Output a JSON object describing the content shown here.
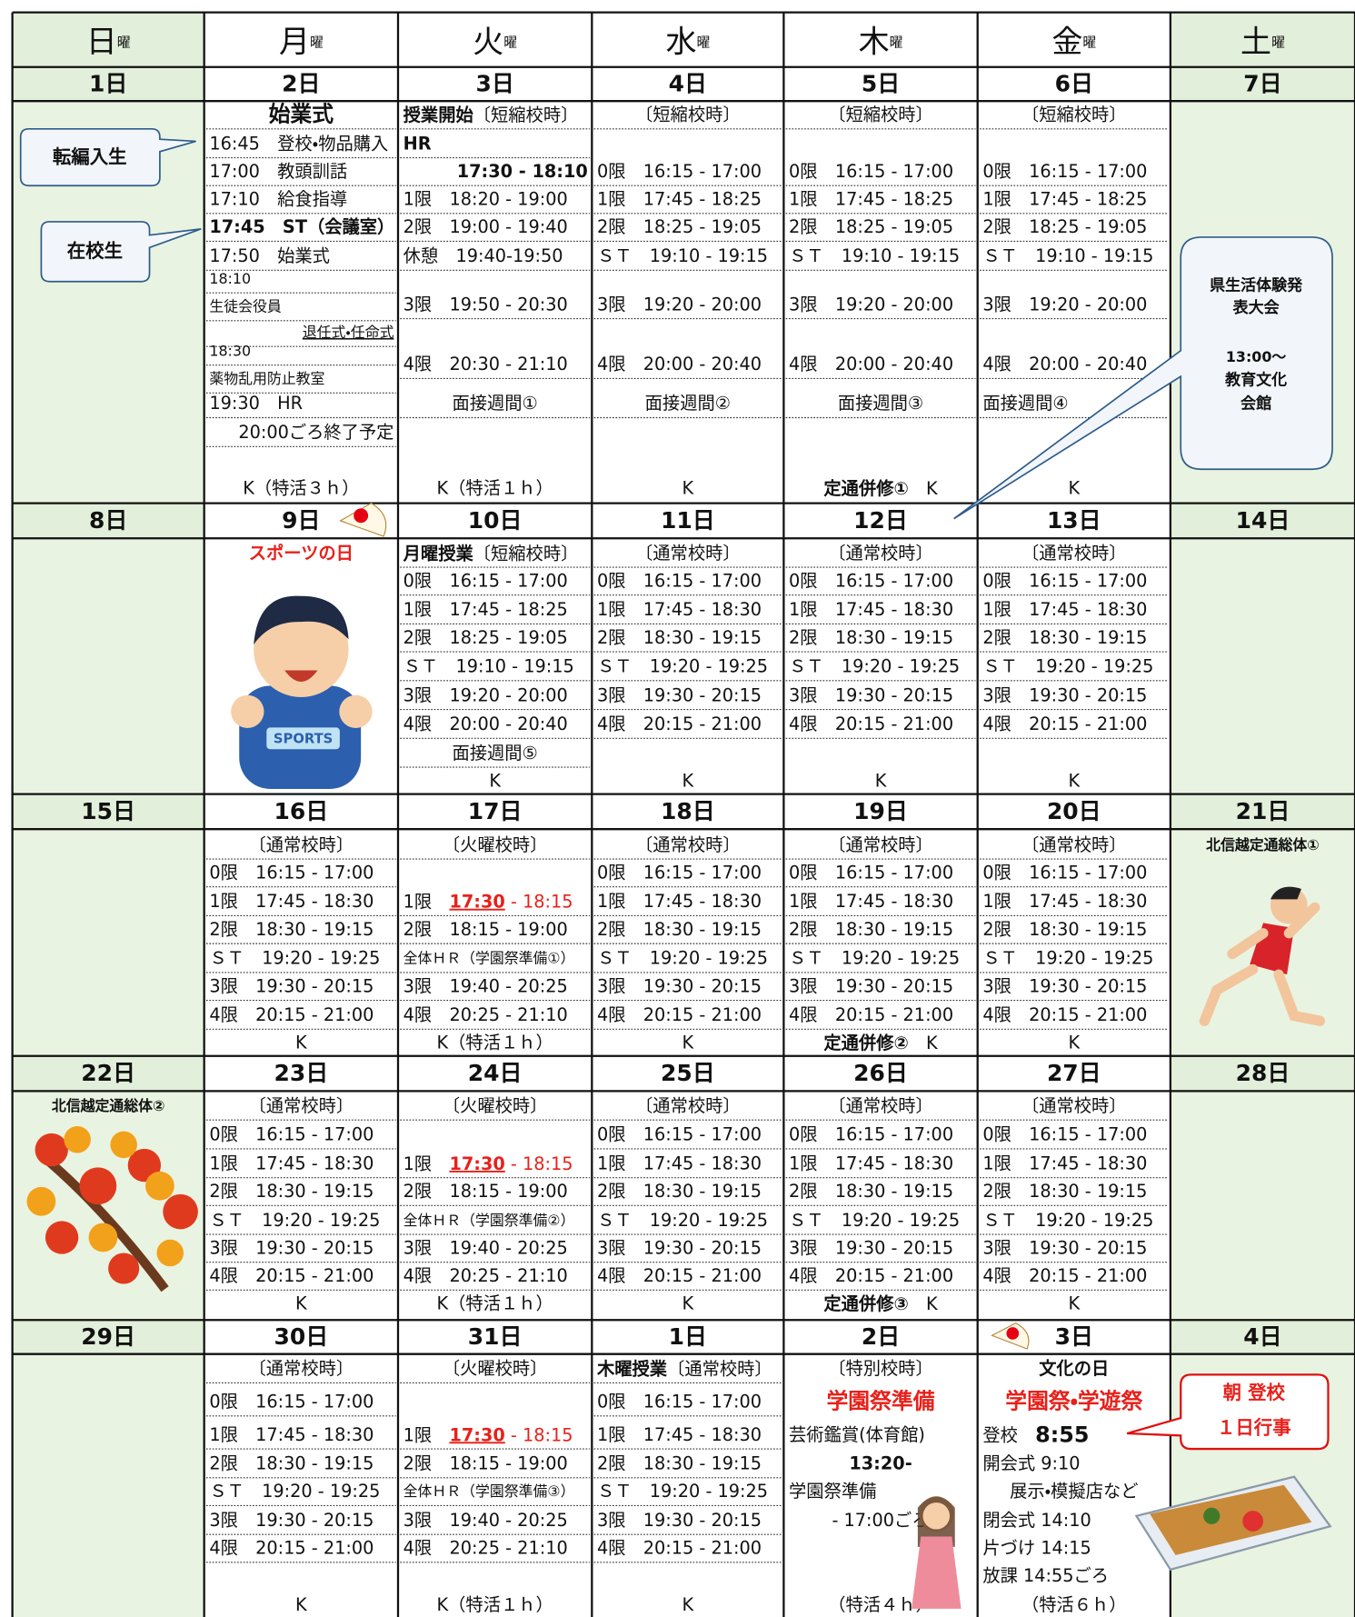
{
  "weekdays": [
    {
      "day": "日",
      "suffix": "曜"
    },
    {
      "day": "月",
      "suffix": "曜"
    },
    {
      "day": "火",
      "suffix": "曜"
    },
    {
      "day": "水",
      "suffix": "曜"
    },
    {
      "day": "木",
      "suffix": "曜"
    },
    {
      "day": "金",
      "suffix": "曜"
    },
    {
      "day": "土",
      "suffix": "曜"
    }
  ],
  "weeks": [
    {
      "dates": [
        "1日",
        "2日",
        "3日",
        "4日",
        "5日",
        "6日",
        "7日"
      ],
      "cells": [
        {
          "lines": []
        },
        {
          "lines": [
            {
              "text": "始業式",
              "style": "big bold center"
            },
            "16:45　登校・物品購入",
            "17:00　教頭訓話",
            "17:10　給食指導",
            {
              "text": "17:45　ST（会議室）",
              "style": "bold"
            },
            "17:50　始業式",
            {
              "text": "18:10",
              "style": "small"
            },
            {
              "text": "生徒会役員",
              "style": "small"
            },
            {
              "text": "退任式・任命式",
              "style": "small right ul"
            },
            {
              "text": "18:30",
              "style": "small"
            },
            {
              "text": "薬物乱用防止教室",
              "style": "small"
            },
            "19:30　HR",
            {
              "text": "20:00ごろ終了予定",
              "style": "right"
            }
          ],
          "foot": "K（特活３ｈ）"
        },
        {
          "lines": [
            {
              "parts": [
                {
                  "text": "授業開始",
                  "style": "bold"
                },
                {
                  "text": "〔短縮校時〕"
                }
              ]
            },
            {
              "text": "HR",
              "style": "bold"
            },
            {
              "text": "17:30 - 18:10",
              "style": "bold right"
            },
            "1限　18:20 - 19:00",
            "2限　19:00 - 19:40",
            "休憩　19:40-19:50",
            "3限　19:50 - 20:30",
            "4限　20:30 - 21:10",
            {
              "text": "面接週間①",
              "style": "center"
            }
          ],
          "foot": "K（特活１ｈ）"
        },
        {
          "lines": [
            {
              "text": "〔短縮校時〕",
              "style": "center"
            },
            null,
            "0限　16:15 - 17:00",
            "1限　17:45 - 18:25",
            "2限　18:25 - 19:05",
            "ＳＴ　19:10 - 19:15",
            "3限　19:20 - 20:00",
            "4限　20:00 - 20:40",
            {
              "text": "面接週間②",
              "style": "center"
            }
          ],
          "foot": "K"
        },
        {
          "lines": [
            {
              "text": "〔短縮校時〕",
              "style": "center"
            },
            null,
            "0限　16:15 - 17:00",
            "1限　17:45 - 18:25",
            "2限　18:25 - 19:05",
            "ＳＴ　19:10 - 19:15",
            "3限　19:20 - 20:00",
            "4限　20:00 - 20:40",
            {
              "text": "面接週間③",
              "style": "center"
            }
          ],
          "foot": {
            "parts": [
              {
                "text": "定通併修①",
                "style": "bold"
              },
              {
                "text": "　K"
              }
            ]
          }
        },
        {
          "lines": [
            {
              "text": "〔短縮校時〕",
              "style": "center"
            },
            null,
            "0限　16:15 - 17:00",
            "1限　17:45 - 18:25",
            "2限　18:25 - 19:05",
            "ＳＴ　19:10 - 19:15",
            "3限　19:20 - 20:00",
            "4限　20:00 - 20:40",
            "面接週間④"
          ],
          "foot": "K"
        },
        {
          "lines": []
        }
      ]
    },
    {
      "dates": [
        "8日",
        "9日",
        "10日",
        "11日",
        "12日",
        "13日",
        "14日"
      ],
      "cells": [
        {
          "lines": []
        },
        {
          "lines": [
            {
              "text": "スポーツの日",
              "style": "red bold center"
            }
          ]
        },
        {
          "lines": [
            {
              "parts": [
                {
                  "text": "月曜授業",
                  "style": "bold"
                },
                {
                  "text": "〔短縮校時〕"
                }
              ]
            },
            "0限　16:15 - 17:00",
            "1限　17:45 - 18:25",
            "2限　18:25 - 19:05",
            "ＳＴ　19:10 - 19:15",
            "3限　19:20 - 20:00",
            "4限　20:00 - 20:40",
            {
              "text": "面接週間⑤",
              "style": "center"
            }
          ],
          "foot": "K"
        },
        {
          "lines": [
            {
              "text": "〔通常校時〕",
              "style": "center"
            },
            "0限　16:15 - 17:00",
            "1限　17:45 - 18:30",
            "2限　18:30 - 19:15",
            "ＳＴ　19:20 - 19:25",
            "3限　19:30 - 20:15",
            "4限　20:15 - 21:00"
          ],
          "foot": "K"
        },
        {
          "lines": [
            {
              "text": "〔通常校時〕",
              "style": "center"
            },
            "0限　16:15 - 17:00",
            "1限　17:45 - 18:30",
            "2限　18:30 - 19:15",
            "ＳＴ　19:20 - 19:25",
            "3限　19:30 - 20:15",
            "4限　20:15 - 21:00"
          ],
          "foot": "K"
        },
        {
          "lines": [
            {
              "text": "〔通常校時〕",
              "style": "center"
            },
            "0限　16:15 - 17:00",
            "1限　17:45 - 18:30",
            "2限　18:30 - 19:15",
            "ＳＴ　19:20 - 19:25",
            "3限　19:30 - 20:15",
            "4限　20:15 - 21:00"
          ],
          "foot": "K"
        },
        {
          "lines": []
        }
      ]
    },
    {
      "dates": [
        "15日",
        "16日",
        "17日",
        "18日",
        "19日",
        "20日",
        "21日"
      ],
      "cells": [
        {
          "lines": []
        },
        {
          "lines": [
            {
              "text": "〔通常校時〕",
              "style": "center"
            },
            "0限　16:15 - 17:00",
            "1限　17:45 - 18:30",
            "2限　18:30 - 19:15",
            "ＳＴ　19:20 - 19:25",
            "3限　19:30 - 20:15",
            "4限　20:15 - 21:00"
          ],
          "foot": "K"
        },
        {
          "lines": [
            {
              "text": "〔火曜校時〕",
              "style": "center"
            },
            null,
            {
              "parts": [
                {
                  "text": "1限　"
                },
                {
                  "text": "17:30",
                  "style": "red bold ul"
                },
                {
                  "text": " - 18:15",
                  "style": "red"
                }
              ]
            },
            "2限　18:15 - 19:00",
            {
              "text": "全体ＨＲ（学園祭準備①）",
              "style": "small"
            },
            "3限　19:40 - 20:25",
            "4限　20:25 - 21:10"
          ],
          "foot": "K（特活１ｈ）"
        },
        {
          "lines": [
            {
              "text": "〔通常校時〕",
              "style": "center"
            },
            "0限　16:15 - 17:00",
            "1限　17:45 - 18:30",
            "2限　18:30 - 19:15",
            "ＳＴ　19:20 - 19:25",
            "3限　19:30 - 20:15",
            "4限　20:15 - 21:00"
          ],
          "foot": "K"
        },
        {
          "lines": [
            {
              "text": "〔通常校時〕",
              "style": "center"
            },
            "0限　16:15 - 17:00",
            "1限　17:45 - 18:30",
            "2限　18:30 - 19:15",
            "ＳＴ　19:20 - 19:25",
            "3限　19:30 - 20:15",
            "4限　20:15 - 21:00"
          ],
          "foot": {
            "parts": [
              {
                "text": "定通併修②",
                "style": "bold"
              },
              {
                "text": "　K"
              }
            ]
          }
        },
        {
          "lines": [
            {
              "text": "〔通常校時〕",
              "style": "center"
            },
            "0限　16:15 - 17:00",
            "1限　17:45 - 18:30",
            "2限　18:30 - 19:15",
            "ＳＴ　19:20 - 19:25",
            "3限　19:30 - 20:15",
            "4限　20:15 - 21:00"
          ],
          "foot": "K"
        },
        {
          "lines": [
            {
              "text": "北信越定通総体①",
              "style": "small bold center"
            }
          ]
        }
      ]
    },
    {
      "dates": [
        "22日",
        "23日",
        "24日",
        "25日",
        "26日",
        "27日",
        "28日"
      ],
      "cells": [
        {
          "lines": [
            {
              "text": "北信越定通総体②",
              "style": "small bold center"
            }
          ]
        },
        {
          "lines": [
            {
              "text": "〔通常校時〕",
              "style": "center"
            },
            "0限　16:15 - 17:00",
            "1限　17:45 - 18:30",
            "2限　18:30 - 19:15",
            "ＳＴ　19:20 - 19:25",
            "3限　19:30 - 20:15",
            "4限　20:15 - 21:00"
          ],
          "foot": "K"
        },
        {
          "lines": [
            {
              "text": "〔火曜校時〕",
              "style": "center"
            },
            null,
            {
              "parts": [
                {
                  "text": "1限　"
                },
                {
                  "text": "17:30",
                  "style": "red bold ul"
                },
                {
                  "text": " - 18:15",
                  "style": "red"
                }
              ]
            },
            "2限　18:15 - 19:00",
            {
              "text": "全体ＨＲ（学園祭準備②）",
              "style": "small"
            },
            "3限　19:40 - 20:25",
            "4限　20:25 - 21:10"
          ],
          "foot": "K（特活１ｈ）"
        },
        {
          "lines": [
            {
              "text": "〔通常校時〕",
              "style": "center"
            },
            "0限　16:15 - 17:00",
            "1限　17:45 - 18:30",
            "2限　18:30 - 19:15",
            "ＳＴ　19:20 - 19:25",
            "3限　19:30 - 20:15",
            "4限　20:15 - 21:00"
          ],
          "foot": "K"
        },
        {
          "lines": [
            {
              "text": "〔通常校時〕",
              "style": "center"
            },
            "0限　16:15 - 17:00",
            "1限　17:45 - 18:30",
            "2限　18:30 - 19:15",
            "ＳＴ　19:20 - 19:25",
            "3限　19:30 - 20:15",
            "4限　20:15 - 21:00"
          ],
          "foot": {
            "parts": [
              {
                "text": "定通併修③",
                "style": "bold"
              },
              {
                "text": "　K"
              }
            ]
          }
        },
        {
          "lines": [
            {
              "text": "〔通常校時〕",
              "style": "center"
            },
            "0限　16:15 - 17:00",
            "1限　17:45 - 18:30",
            "2限　18:30 - 19:15",
            "ＳＴ　19:20 - 19:25",
            "3限　19:30 - 20:15",
            "4限　20:15 - 21:00"
          ],
          "foot": "K"
        },
        {
          "lines": []
        }
      ]
    },
    {
      "dates": [
        "29日",
        "30日",
        "31日",
        "1日",
        "2日",
        "3日",
        "4日"
      ],
      "cells": [
        {
          "lines": []
        },
        {
          "lines": [
            {
              "text": "〔通常校時〕",
              "style": "center"
            },
            "0限　16:15 - 17:00",
            "1限　17:45 - 18:30",
            "2限　18:30 - 19:15",
            "ＳＴ　19:20 - 19:25",
            "3限　19:30 - 20:15",
            "4限　20:15 - 21:00"
          ],
          "foot": "K"
        },
        {
          "lines": [
            {
              "text": "〔火曜校時〕",
              "style": "center"
            },
            null,
            {
              "parts": [
                {
                  "text": "1限　"
                },
                {
                  "text": "17:30",
                  "style": "red bold ul"
                },
                {
                  "text": " - 18:15",
                  "style": "red"
                }
              ]
            },
            "2限　18:15 - 19:00",
            {
              "text": "全体ＨＲ（学園祭準備③）",
              "style": "small"
            },
            "3限　19:40 - 20:25",
            "4限　20:25 - 21:10"
          ],
          "foot": "K（特活１ｈ）"
        },
        {
          "lines": [
            {
              "parts": [
                {
                  "text": "木曜授業",
                  "style": "bold"
                },
                {
                  "text": "〔通常校時〕"
                }
              ]
            },
            "0限　16:15 - 17:00",
            "1限　17:45 - 18:30",
            "2限　18:30 - 19:15",
            "ＳＴ　19:20 - 19:25",
            "3限　19:30 - 20:15",
            "4限　20:15 - 21:00"
          ],
          "foot": "K"
        },
        {
          "lines": [
            {
              "text": "〔特別校時〕",
              "style": "center"
            },
            {
              "text": "学園祭準備",
              "style": "red bold big center"
            },
            "芸術鑑賞(体育館)",
            {
              "text": "13:20-",
              "style": "bold center"
            },
            "学園祭準備",
            {
              "text": "- 17:00ごろ",
              "style": "center"
            }
          ],
          "foot": "（特活４ｈ）"
        },
        {
          "lines": [
            {
              "text": "文化の日",
              "style": "bold center"
            },
            {
              "text": "学園祭・学遊祭",
              "style": "red bold big center"
            },
            {
              "parts": [
                {
                  "text": "登校　"
                },
                {
                  "text": "8:55",
                  "style": "bold big"
                }
              ]
            },
            "開会式 9:10",
            {
              "text": "展示・模擬店など",
              "style": "center"
            },
            "閉会式 14:10",
            "片づけ 14:15",
            "放課 14:55ごろ"
          ],
          "foot": "（特活６ｈ）"
        },
        {
          "lines": []
        }
      ]
    }
  ],
  "callouts": {
    "transfer": "転編入生",
    "current": "在校生",
    "contest": [
      "県生活体験発",
      "表大会",
      "13:00～",
      "教育文化",
      "会館"
    ],
    "festival": [
      "朝 登校",
      "１日行事"
    ]
  }
}
